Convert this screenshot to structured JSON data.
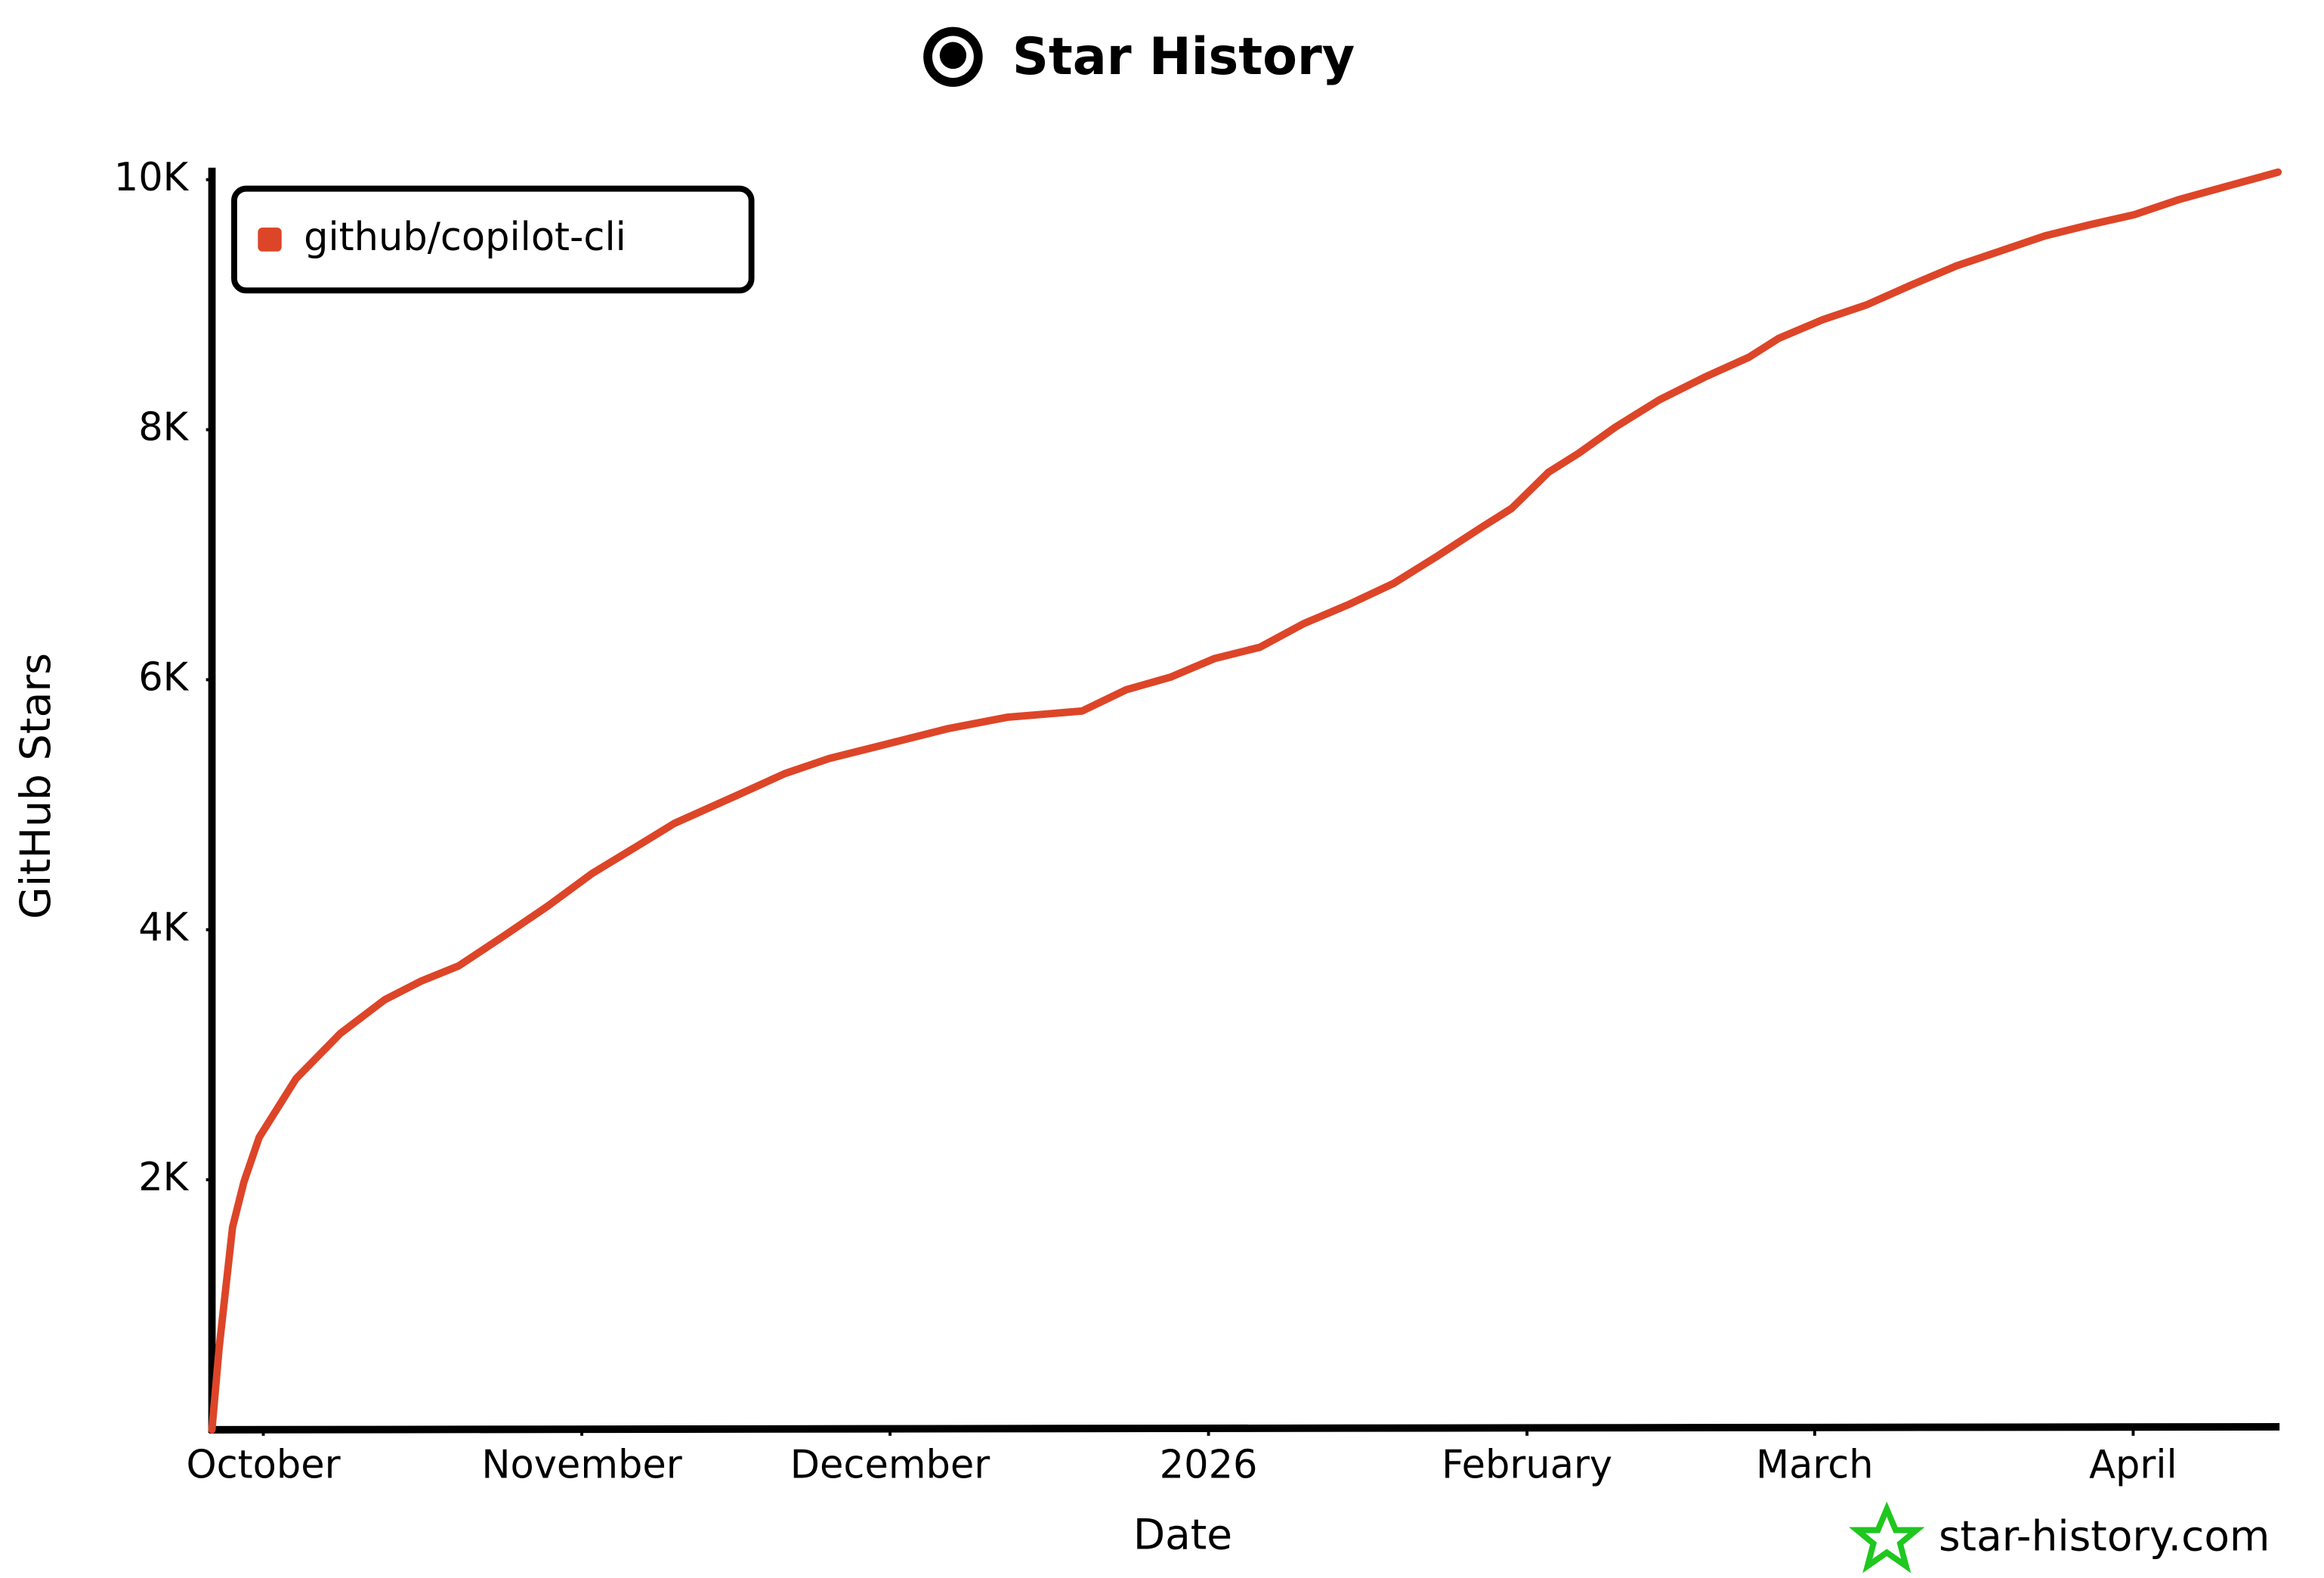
{
  "chart_data": {
    "type": "line",
    "title": "Star History",
    "xlabel": "Date",
    "ylabel": "GitHub Stars",
    "x": [
      -5,
      -4.3,
      -3,
      -1.9,
      -0.4,
      3.2,
      7.5,
      11.8,
      15.4,
      19,
      23.4,
      27.7,
      32,
      36.4,
      40,
      46.5,
      50.8,
      55.1,
      60.9,
      66.7,
      72.4,
      79.7,
      84,
      88.3,
      92.6,
      97,
      101.3,
      105.6,
      110,
      114.3,
      118.6,
      121.5,
      125.1,
      128,
      131.6,
      135.9,
      140.3,
      144.6,
      147.5,
      151.8,
      156.1,
      160.5,
      164.8,
      169.1,
      173.4,
      177.8,
      182.1,
      186.4,
      190.8,
      196.1
    ],
    "series": [
      {
        "name": "github/copilot-cli",
        "color": "#dd4528",
        "values": [
          0,
          660,
          1620,
          1980,
          2340,
          2810,
          3170,
          3440,
          3590,
          3710,
          3950,
          4190,
          4450,
          4670,
          4850,
          5090,
          5250,
          5370,
          5490,
          5610,
          5700,
          5750,
          5920,
          6020,
          6170,
          6260,
          6450,
          6600,
          6770,
          6990,
          7220,
          7370,
          7660,
          7810,
          8020,
          8240,
          8420,
          8580,
          8730,
          8880,
          9000,
          9160,
          9310,
          9430,
          9550,
          9640,
          9720,
          9840,
          9940,
          10060
        ]
      }
    ],
    "xlim": [
      -5,
      196.1
    ],
    "xticks": [
      {
        "value": 0,
        "label": "October"
      },
      {
        "value": 31,
        "label": "November"
      },
      {
        "value": 61,
        "label": "December"
      },
      {
        "value": 92,
        "label": "2026"
      },
      {
        "value": 123,
        "label": "February"
      },
      {
        "value": 151,
        "label": "March"
      },
      {
        "value": 182,
        "label": "April"
      }
    ],
    "ylim": [
      0,
      10100
    ],
    "yticks": [
      {
        "value": 2000,
        "label": "2K"
      },
      {
        "value": 4000,
        "label": "4K"
      },
      {
        "value": 6000,
        "label": "6K"
      },
      {
        "value": 8000,
        "label": "8K"
      },
      {
        "value": 10000,
        "label": "10K"
      }
    ],
    "legend": "top-left",
    "watermark": "star-history.com"
  }
}
